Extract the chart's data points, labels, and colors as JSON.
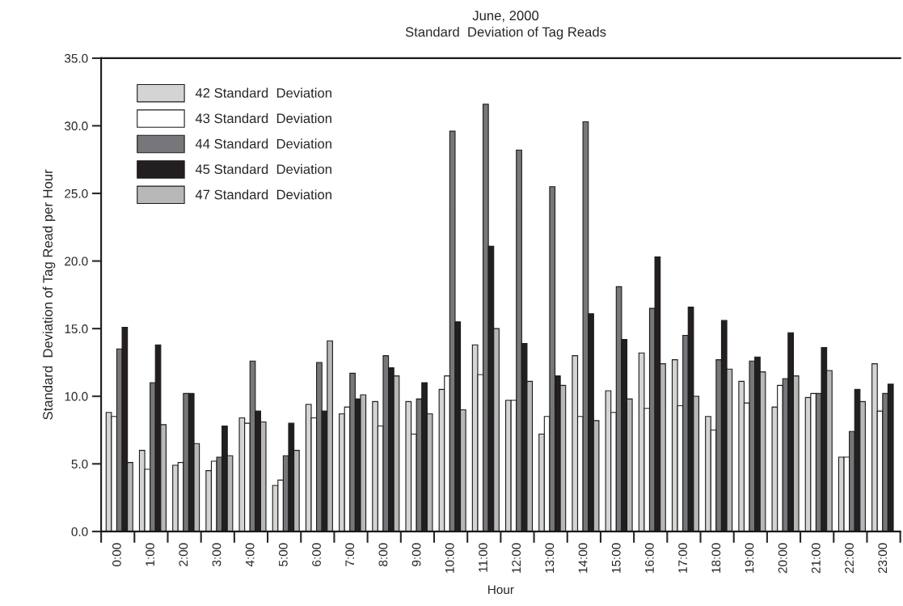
{
  "chart_data": {
    "type": "bar",
    "title": "June, 2000",
    "subtitle": "Standard  Deviation of Tag Reads",
    "xlabel": "Hour",
    "ylabel": "Standard  Deviation of Tag Read per Hour",
    "categories": [
      "0:00",
      "1:00",
      "2:00",
      "3:00",
      "4:00",
      "5:00",
      "6:00",
      "7:00",
      "8:00",
      "9:00",
      "10:00",
      "11:00",
      "12:00",
      "13:00",
      "14:00",
      "15:00",
      "16:00",
      "17:00",
      "18:00",
      "19:00",
      "20:00",
      "21:00",
      "22:00",
      "23:00"
    ],
    "series": [
      {
        "name": "42 Standard  Deviation",
        "color": "#d4d4d4",
        "values": [
          8.8,
          6.0,
          4.9,
          4.5,
          8.4,
          3.4,
          9.4,
          8.7,
          9.6,
          9.6,
          10.5,
          13.8,
          9.7,
          7.2,
          13.0,
          10.4,
          13.2,
          12.7,
          8.5,
          11.1,
          9.2,
          9.9,
          5.5,
          12.4
        ]
      },
      {
        "name": "43 Standard  Deviation",
        "color": "#ffffff",
        "values": [
          8.5,
          4.6,
          5.1,
          5.2,
          8.0,
          3.8,
          8.4,
          9.2,
          7.8,
          7.2,
          11.5,
          11.6,
          9.7,
          8.5,
          8.5,
          8.8,
          9.1,
          9.3,
          7.5,
          9.5,
          10.8,
          10.2,
          5.5,
          8.9
        ]
      },
      {
        "name": "44 Standard  Deviation",
        "color": "#77777b",
        "values": [
          13.5,
          11.0,
          10.2,
          5.5,
          12.6,
          5.6,
          12.5,
          11.7,
          13.0,
          9.8,
          29.6,
          31.6,
          28.2,
          25.5,
          30.3,
          18.1,
          16.5,
          14.5,
          12.7,
          12.6,
          11.3,
          10.2,
          7.4,
          10.2
        ]
      },
      {
        "name": "45 Standard  Deviation",
        "color": "#231f20",
        "values": [
          15.1,
          13.8,
          10.2,
          7.8,
          8.9,
          8.0,
          8.9,
          9.8,
          12.1,
          11.0,
          15.5,
          21.1,
          13.9,
          11.5,
          16.1,
          14.2,
          20.3,
          16.6,
          15.6,
          12.9,
          14.7,
          13.6,
          10.5,
          10.9
        ]
      },
      {
        "name": "47 Standard  Deviation",
        "color": "#b8b8b8",
        "values": [
          5.1,
          7.9,
          6.5,
          5.6,
          8.1,
          6.0,
          14.1,
          10.1,
          11.5,
          8.7,
          9.0,
          15.0,
          11.1,
          10.8,
          8.2,
          9.8,
          12.4,
          10.0,
          12.0,
          11.8,
          11.5,
          11.9,
          9.6,
          null
        ]
      }
    ],
    "ylim": [
      0,
      35
    ],
    "yticks": [
      {
        "value": 0,
        "label": "0.0"
      },
      {
        "value": 5,
        "label": "5.0"
      },
      {
        "value": 10,
        "label": "10.0"
      },
      {
        "value": 15,
        "label": "15.0"
      },
      {
        "value": 20,
        "label": "20.0"
      },
      {
        "value": 25,
        "label": "25.0"
      },
      {
        "value": 30,
        "label": "30.0"
      },
      {
        "value": 35,
        "label": "35.0"
      }
    ],
    "grid": false,
    "legend": "top left"
  }
}
